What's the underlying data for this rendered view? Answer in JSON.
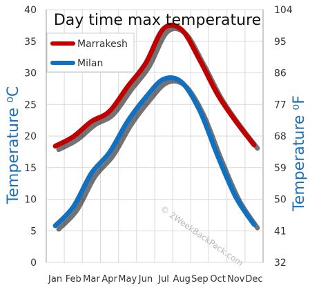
{
  "chart_data": {
    "type": "line",
    "title": "Day time max temperature",
    "categories": [
      "Jan",
      "Feb",
      "Mar",
      "Apr",
      "May",
      "Jun",
      "Jul",
      "Aug",
      "Sep",
      "Oct",
      "Nov",
      "Dec"
    ],
    "series": [
      {
        "name": "Marrakesh",
        "color": "#c00000",
        "values": [
          18.4,
          19.9,
          22.3,
          23.9,
          27.8,
          31.5,
          37.0,
          36.8,
          32.0,
          26.5,
          22.3,
          18.6
        ]
      },
      {
        "name": "Milan",
        "color": "#1170c0",
        "values": [
          5.8,
          8.8,
          14.1,
          17.4,
          22.3,
          26.1,
          29.0,
          28.5,
          24.0,
          16.8,
          10.3,
          6.0
        ]
      }
    ],
    "y_left": {
      "label": "Temperature ⁰C",
      "ticks": [
        "0",
        "5",
        "10",
        "15",
        "20",
        "25",
        "30",
        "35",
        "40"
      ],
      "ylim": [
        0,
        40
      ]
    },
    "y_right": {
      "label": "Temperature ⁰F",
      "ticks": [
        "32",
        "41",
        "50",
        "59",
        "68",
        "77",
        "86",
        "95",
        "104"
      ],
      "ylim": [
        32,
        104
      ]
    },
    "grid": true,
    "legend": "top-left",
    "watermark": "© 2WeekBackPack.com"
  }
}
